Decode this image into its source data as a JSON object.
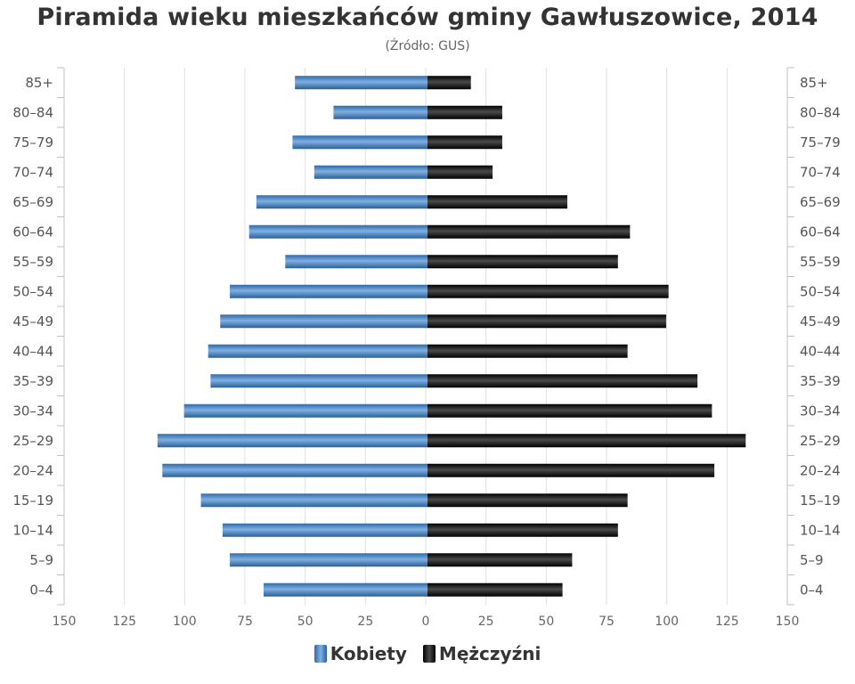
{
  "chart_data": {
    "type": "bar",
    "orientation": "horizontal-population-pyramid",
    "title": "Piramida wieku mieszkańców gminy Gawłuszowice, 2014",
    "subtitle": "(Źródło: GUS)",
    "categories": [
      "85+",
      "80–84",
      "75–79",
      "70–74",
      "65–69",
      "60–64",
      "55–59",
      "50–54",
      "45–49",
      "40–44",
      "35–39",
      "30–34",
      "25–29",
      "20–24",
      "15–19",
      "10–14",
      "5–9",
      "0–4"
    ],
    "series": [
      {
        "name": "Kobiety",
        "color": "#4a86c5",
        "values": [
          55,
          39,
          56,
          47,
          71,
          74,
          59,
          82,
          86,
          91,
          90,
          101,
          112,
          110,
          94,
          85,
          82,
          68
        ]
      },
      {
        "name": "Mężczyźni",
        "color": "#1a1a1a",
        "values": [
          18,
          31,
          31,
          27,
          58,
          84,
          79,
          100,
          99,
          83,
          112,
          118,
          132,
          119,
          83,
          79,
          60,
          56
        ]
      }
    ],
    "xlim": [
      -150,
      150
    ],
    "x_ticks": [
      150,
      125,
      100,
      75,
      50,
      25,
      0,
      25,
      50,
      75,
      100,
      125,
      150
    ],
    "grid": true,
    "legend": "bottom-center"
  }
}
